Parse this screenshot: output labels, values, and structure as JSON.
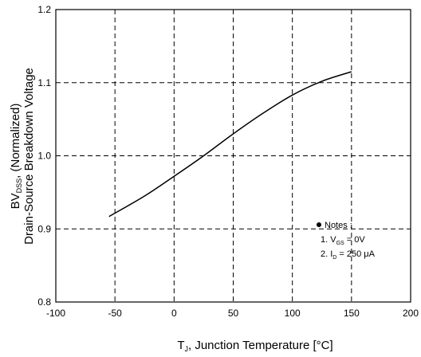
{
  "chart_data": {
    "type": "line",
    "title": "",
    "xlabel": "T , Junction Temperature [°C]",
    "xlabel_parts": {
      "symbol": "T",
      "sub": "J",
      "rest": ", Junction Temperature [",
      "unit": "°C",
      "close": "]"
    },
    "ylabel_line1": "BV      , (Normalized)",
    "ylabel_parts": {
      "symbol": "BV",
      "sub": "DSS",
      "rest": ", (Normalized)"
    },
    "ylabel_line2": "Drain-Source Breakdown Voltage",
    "xlim": [
      -100,
      200
    ],
    "ylim": [
      0.8,
      1.2
    ],
    "xticks": [
      -100,
      -50,
      0,
      50,
      100,
      150,
      200
    ],
    "yticks": [
      0.8,
      0.9,
      1.0,
      1.1,
      1.2
    ],
    "xtick_labels": [
      "-100",
      "-50",
      "0",
      "50",
      "100",
      "150",
      "200"
    ],
    "ytick_labels": [
      "0.8",
      "0.9",
      "1.0",
      "1.1",
      "1.2"
    ],
    "grid": true,
    "series": [
      {
        "x": [
          -55,
          -25,
          0,
          25,
          50,
          75,
          100,
          125,
          150
        ],
        "y": [
          0.917,
          0.945,
          0.972,
          1.0,
          1.03,
          1.058,
          1.083,
          1.102,
          1.115
        ]
      }
    ],
    "notes": {
      "title": "Notes :",
      "line1": {
        "prefix": "1. V",
        "sub": "GS",
        "suffix": " = 0V"
      },
      "line2": {
        "prefix": "2. I",
        "sub": "D",
        "suffix": " = 250 μA"
      }
    }
  }
}
